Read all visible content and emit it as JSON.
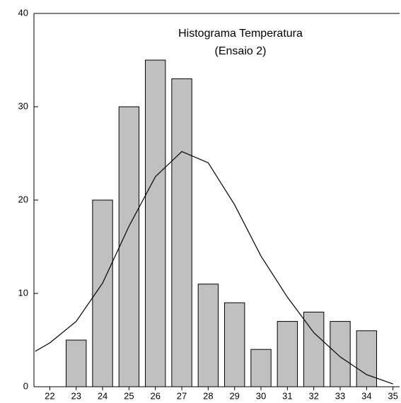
{
  "chart_data": {
    "type": "bar",
    "title": [
      "Histograma Temperatura",
      "(Ensaio 2)"
    ],
    "x": [
      23,
      24,
      25,
      26,
      27,
      28,
      29,
      30,
      31,
      32,
      33,
      34
    ],
    "series": [
      {
        "type": "bar",
        "color": "#c0c0c0",
        "values": [
          5,
          20,
          30,
          35,
          33,
          11,
          9,
          4,
          7,
          8,
          7,
          6
        ]
      },
      {
        "type": "line",
        "color": "#000000",
        "x": [
          21.45,
          22,
          23,
          24,
          25,
          26,
          27,
          28,
          29,
          30,
          31,
          32,
          33,
          34,
          35
        ],
        "values": [
          3.8,
          4.7,
          7,
          11.1,
          17.2,
          22.5,
          25.2,
          24,
          19.5,
          14,
          9.6,
          5.8,
          3.2,
          1.3,
          0.3
        ]
      }
    ],
    "xlim": [
      21.4,
      35.25
    ],
    "xticks": [
      22,
      23,
      24,
      25,
      26,
      27,
      28,
      29,
      30,
      31,
      32,
      33,
      34,
      35
    ],
    "ylim": [
      0,
      40
    ],
    "yticks": [
      0,
      10,
      20,
      30,
      40
    ]
  }
}
